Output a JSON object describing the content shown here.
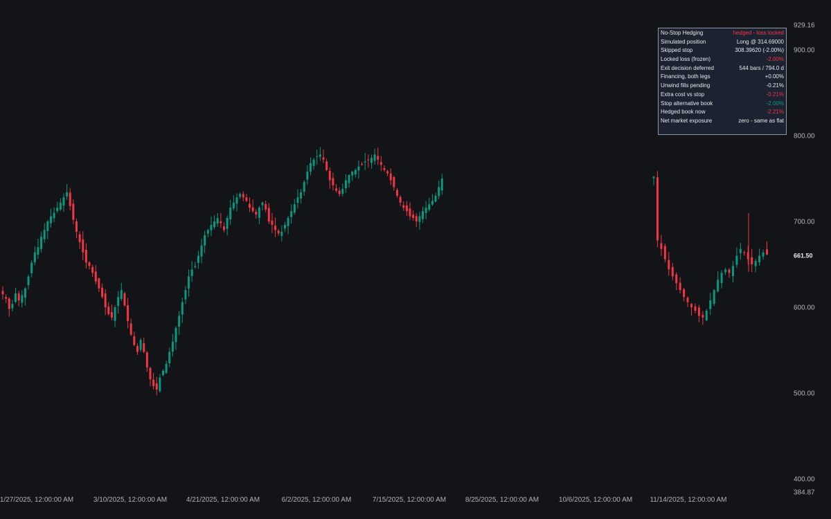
{
  "colors": {
    "background": "#131417",
    "up": "#089981",
    "down": "#f23645",
    "axis_text": "#aeb2bb"
  },
  "chart_data": {
    "type": "candlestick",
    "title": "",
    "xlabel": "",
    "ylabel": "",
    "ylim": [
      384.87,
      929.16
    ],
    "grid": false,
    "x_ticks": [
      "1/27/2025, 12:00:00 AM",
      "3/10/2025, 12:00:00 AM",
      "4/21/2025, 12:00:00 AM",
      "6/2/2025, 12:00:00 AM",
      "7/15/2025, 12:00:00 AM",
      "8/25/2025, 12:00:00 AM",
      "10/6/2025, 12:00:00 AM",
      "11/14/2025, 12:00:00 AM"
    ],
    "y_ticks": [
      "400.00",
      "500.00",
      "600.00",
      "700.00",
      "800.00",
      "900.00"
    ],
    "y_max_label": "929.16",
    "y_min_label": "384.87",
    "last_price": "661.50",
    "series": [
      {
        "name": "",
        "close_levels": [
          615,
          610,
          598,
          604,
          616,
          608,
          614,
          622,
          636,
          652,
          664,
          670,
          682,
          690,
          700,
          706,
          710,
          716,
          722,
          728,
          734,
          718,
          702,
          688,
          676,
          664,
          652,
          648,
          640,
          630,
          622,
          612,
          600,
          592,
          588,
          600,
          612,
          620,
          602,
          584,
          568,
          556,
          548,
          562,
          548,
          530,
          516,
          508,
          504,
          518,
          526,
          534,
          548,
          560,
          576,
          590,
          606,
          620,
          636,
          644,
          648,
          660,
          672,
          684,
          690,
          696,
          700,
          704,
          698,
          690,
          704,
          716,
          722,
          728,
          732,
          728,
          724,
          716,
          712,
          708,
          716,
          722,
          714,
          700,
          696,
          690,
          686,
          688,
          696,
          704,
          712,
          720,
          728,
          734,
          746,
          758,
          768,
          772,
          776,
          778,
          772,
          760,
          748,
          742,
          736,
          732,
          738,
          748,
          754,
          758,
          760,
          764,
          766,
          770,
          772,
          774,
          778,
          772,
          766,
          760,
          756,
          748,
          740,
          730,
          722,
          716,
          712,
          706,
          704,
          700,
          706,
          712,
          716,
          720,
          724,
          730,
          740,
          750,
          752,
          678,
          668,
          656,
          644,
          636,
          628,
          620,
          612,
          606,
          600,
          596,
          590,
          588,
          596,
          608,
          620,
          632,
          640,
          644,
          640,
          648,
          660,
          668,
          664,
          656,
          650,
          654,
          660,
          664,
          661.5
        ]
      }
    ]
  },
  "stats_panel": {
    "rows": [
      {
        "label": "No-Stop Hedging",
        "value": "hedged - loss locked",
        "tone": "red"
      },
      {
        "label": "Simulated position",
        "value": "Long @ 314.69000",
        "tone": "neutral"
      },
      {
        "label": "Skipped stop",
        "value": "308.39620 (-2.00%)",
        "tone": "neutral"
      },
      {
        "label": "Locked loss (frozen)",
        "value": "-2.00%",
        "tone": "red"
      },
      {
        "label": "Exit decision deferred",
        "value": "544 bars / 794.0 d",
        "tone": "neutral"
      },
      {
        "label": "Financing, both legs",
        "value": "+0.00%",
        "tone": "neutral"
      },
      {
        "label": "Unwind fills pending",
        "value": "-0.21%",
        "tone": "neutral"
      },
      {
        "label": "Extra cost vs stop",
        "value": "-0.21%",
        "tone": "red"
      },
      {
        "label": "Stop alternative book",
        "value": "-2.00%",
        "tone": "green"
      },
      {
        "label": "Hedged book now",
        "value": "-2.21%",
        "tone": "red"
      },
      {
        "label": "Net market exposure",
        "value": "zero - same as flat",
        "tone": "neutral"
      }
    ]
  }
}
